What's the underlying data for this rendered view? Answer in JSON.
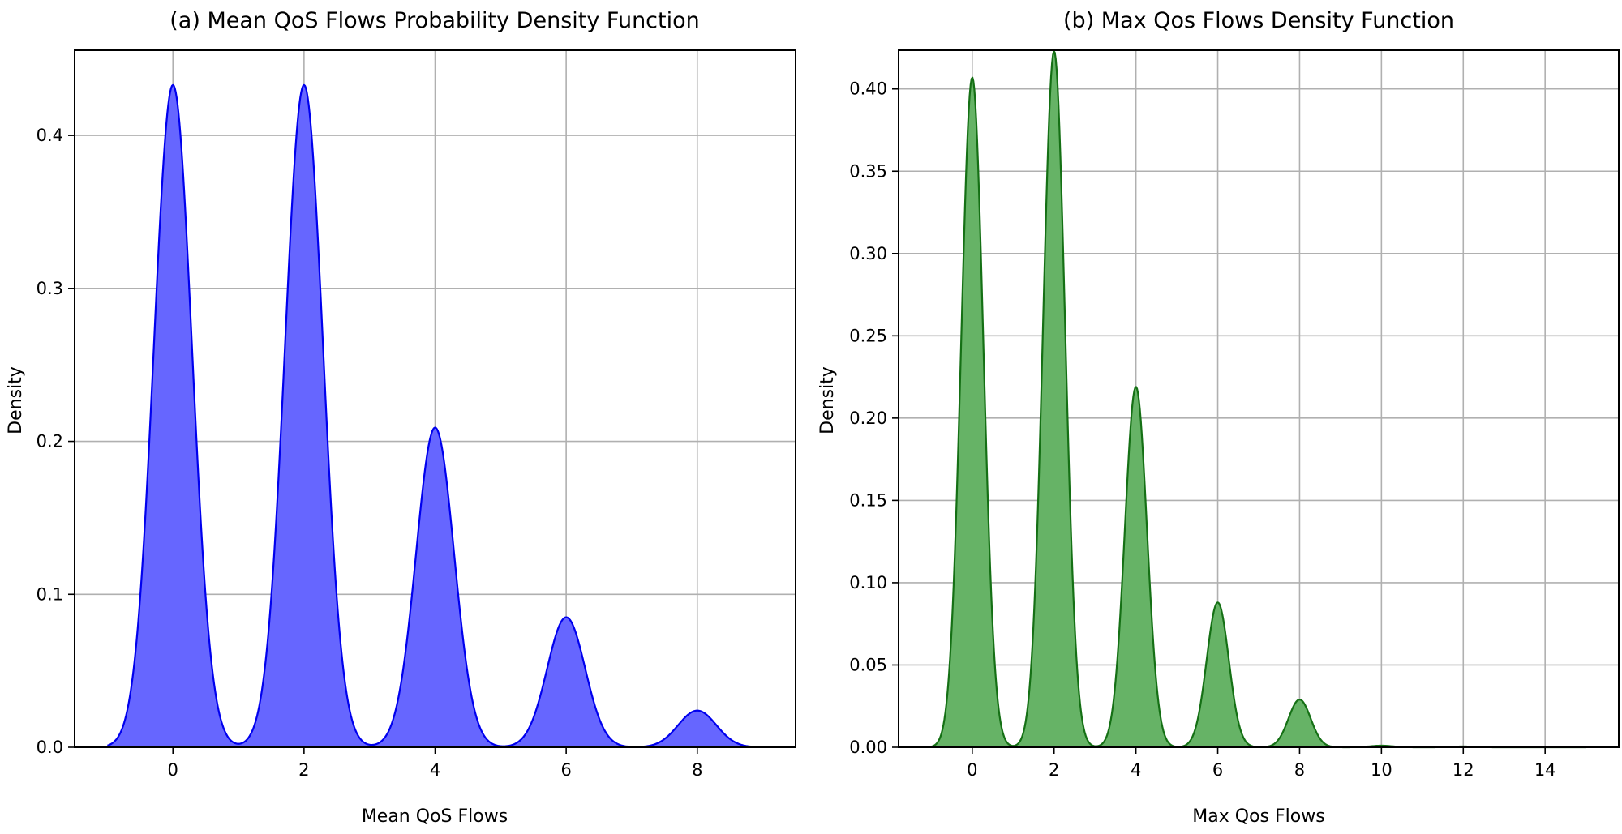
{
  "chart_data": [
    {
      "type": "area",
      "title": "(a) Mean QoS Flows Probability Density Function",
      "xlabel": "Mean QoS Flows",
      "ylabel": "Density",
      "xlim": [
        -1.5,
        9.5
      ],
      "ylim": [
        0,
        0.4557
      ],
      "xticks": [
        0,
        2,
        4,
        6,
        8
      ],
      "yticks": [
        0.0,
        0.1,
        0.2,
        0.3,
        0.4
      ],
      "ytick_labels": [
        "0.0",
        "0.1",
        "0.2",
        "0.3",
        "0.4"
      ],
      "grid": true,
      "colors": {
        "line": "#0000ee",
        "fill": "#6666ff"
      },
      "series": [
        {
          "x_range": [
            -1.0,
            9.0
          ],
          "peaks": [
            {
              "x": 0,
              "density": 0.433
            },
            {
              "x": 2,
              "density": 0.433
            },
            {
              "x": 4,
              "density": 0.209
            },
            {
              "x": 6,
              "density": 0.085
            },
            {
              "x": 8,
              "density": 0.024
            }
          ],
          "peak_sigma": 0.29
        }
      ]
    },
    {
      "type": "area",
      "title": "(b) Max Qos Flows Density Function",
      "xlabel": "Max Qos Flows",
      "ylabel": "Density",
      "xlim": [
        -1.8,
        15.8
      ],
      "ylim": [
        0,
        0.4235
      ],
      "xticks": [
        0,
        2,
        4,
        6,
        8,
        10,
        12,
        14
      ],
      "yticks": [
        0.0,
        0.05,
        0.1,
        0.15,
        0.2,
        0.25,
        0.3,
        0.35,
        0.4
      ],
      "ytick_labels": [
        "0.00",
        "0.05",
        "0.10",
        "0.15",
        "0.20",
        "0.25",
        "0.30",
        "0.35",
        "0.40"
      ],
      "grid": true,
      "colors": {
        "line": "#157015",
        "fill": "#66b366"
      },
      "series": [
        {
          "x_range": [
            -1.0,
            15.0
          ],
          "peaks": [
            {
              "x": 0,
              "density": 0.407
            },
            {
              "x": 2,
              "density": 0.423
            },
            {
              "x": 4,
              "density": 0.219
            },
            {
              "x": 6,
              "density": 0.088
            },
            {
              "x": 8,
              "density": 0.029
            },
            {
              "x": 10,
              "density": 0.001
            },
            {
              "x": 12,
              "density": 0.0005
            }
          ],
          "peak_sigma": 0.27
        }
      ]
    }
  ]
}
